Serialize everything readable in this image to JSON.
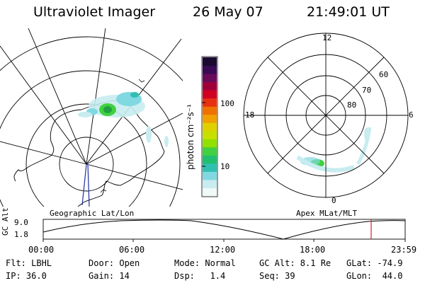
{
  "header": {
    "title": "Ultraviolet Imager",
    "date": "26 May 07",
    "time": "21:49:01 UT"
  },
  "left_panel": {
    "caption": "Geographic Lat/Lon"
  },
  "right_panel": {
    "caption": "Apex MLat/MLT",
    "mlt_labels": {
      "top": "12",
      "right": "6",
      "bottom": "0",
      "left": "18"
    },
    "lat_labels": [
      "60",
      "70",
      "80"
    ]
  },
  "colorbar": {
    "unit_label": "photon cm⁻²s⁻¹",
    "tick_labels": [
      "100",
      "10"
    ],
    "colors": [
      "#1a0a30",
      "#3a0a55",
      "#6a0a5a",
      "#a0003a",
      "#d00020",
      "#e83010",
      "#f07000",
      "#f0a000",
      "#e0d000",
      "#c8e000",
      "#90e000",
      "#40d040",
      "#20c070",
      "#30c0b0",
      "#80d8e0",
      "#c8ecf0",
      "#f0f8f8"
    ]
  },
  "timeline": {
    "ylabel": "GC Alt",
    "ticks_y": [
      "9.0",
      "1.8"
    ],
    "ticks_x": [
      "00:00",
      "06:00",
      "12:00",
      "18:00",
      "23:59"
    ]
  },
  "status": {
    "row1": {
      "flt": "Flt: LBHL",
      "door": "Door: Open",
      "mode": "Mode: Normal",
      "gcalt": "GC Alt: 8.1 Re",
      "glat": "GLat: -74.9"
    },
    "row2": {
      "ip": "IP: 36.0",
      "gain": "Gain: 14",
      "dsp": "Dsp:   1.4",
      "seq": "Seq: 39",
      "glon": "GLon:  44.0"
    }
  }
}
